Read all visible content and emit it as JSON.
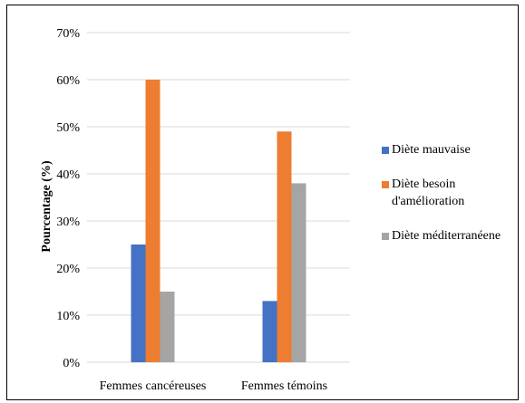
{
  "chart_data": {
    "type": "bar",
    "title": "",
    "xlabel": "",
    "ylabel": "Pourcentage (%)",
    "ylim": [
      0,
      70
    ],
    "yticks": [
      "0%",
      "10%",
      "20%",
      "30%",
      "40%",
      "50%",
      "60%",
      "70%"
    ],
    "grid": true,
    "legend": "right",
    "categories": [
      "Femmes cancéreuses",
      "Femmes témoins"
    ],
    "series": [
      {
        "name": "Diète mauvaise",
        "color": "#4472C4",
        "values": [
          25,
          13
        ]
      },
      {
        "name": "Diète besoin d'amélioration",
        "color": "#ED7D31",
        "values": [
          60,
          49
        ]
      },
      {
        "name": "Diète méditerranéene",
        "color": "#A5A5A5",
        "values": [
          15,
          38
        ]
      }
    ]
  }
}
